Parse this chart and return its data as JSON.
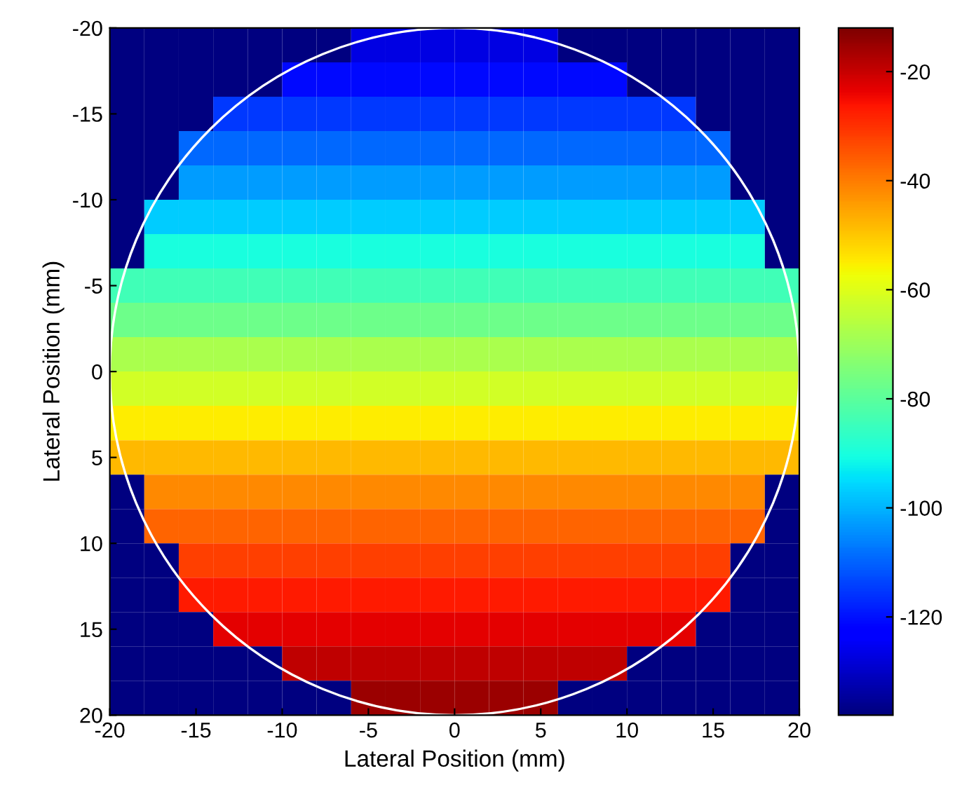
{
  "chart_data": {
    "type": "heatmap",
    "xlabel": "Lateral Position (mm)",
    "ylabel": "Lateral Position (mm)",
    "xlim": [
      -20,
      20
    ],
    "ylim": [
      20,
      -20
    ],
    "xticks": [
      -20,
      -15,
      -10,
      -5,
      0,
      5,
      10,
      15,
      20
    ],
    "yticks": [
      -20,
      -15,
      -10,
      -5,
      0,
      5,
      10,
      15,
      20
    ],
    "clim": [
      -138,
      -12
    ],
    "cticks": [
      -120,
      -100,
      -80,
      -60,
      -40,
      -20
    ],
    "cells": [
      [
        -138,
        -138,
        -138,
        -138,
        -138,
        -138,
        -138,
        -127,
        -127,
        -127,
        -127,
        -127,
        -127,
        -138,
        -138,
        -138,
        -138,
        -138,
        -138,
        -138
      ],
      [
        -138,
        -138,
        -138,
        -138,
        -138,
        -121,
        -121,
        -121,
        -121,
        -121,
        -121,
        -121,
        -121,
        -121,
        -121,
        -138,
        -138,
        -138,
        -138,
        -138
      ],
      [
        -138,
        -138,
        -138,
        -115,
        -115,
        -115,
        -115,
        -115,
        -115,
        -115,
        -115,
        -115,
        -115,
        -115,
        -115,
        -115,
        -115,
        -138,
        -138,
        -138
      ],
      [
        -138,
        -138,
        -109,
        -109,
        -109,
        -109,
        -109,
        -109,
        -109,
        -109,
        -109,
        -109,
        -109,
        -109,
        -109,
        -109,
        -109,
        -109,
        -138,
        -138
      ],
      [
        -138,
        -138,
        -103,
        -103,
        -103,
        -103,
        -103,
        -103,
        -103,
        -103,
        -103,
        -103,
        -103,
        -103,
        -103,
        -103,
        -103,
        -103,
        -138,
        -138
      ],
      [
        -138,
        -97,
        -97,
        -97,
        -97,
        -97,
        -97,
        -97,
        -97,
        -97,
        -97,
        -97,
        -97,
        -97,
        -97,
        -97,
        -97,
        -97,
        -97,
        -138
      ],
      [
        -138,
        -90,
        -90,
        -90,
        -90,
        -90,
        -90,
        -90,
        -90,
        -90,
        -90,
        -90,
        -90,
        -90,
        -90,
        -90,
        -90,
        -90,
        -90,
        -138
      ],
      [
        -84,
        -84,
        -84,
        -84,
        -84,
        -84,
        -84,
        -84,
        -84,
        -84,
        -84,
        -84,
        -84,
        -84,
        -84,
        -84,
        -84,
        -84,
        -84,
        -84
      ],
      [
        -77,
        -77,
        -77,
        -77,
        -77,
        -77,
        -77,
        -77,
        -77,
        -77,
        -77,
        -77,
        -77,
        -77,
        -77,
        -77,
        -77,
        -77,
        -77,
        -77
      ],
      [
        -68,
        -68,
        -68,
        -68,
        -68,
        -68,
        -68,
        -68,
        -68,
        -68,
        -68,
        -68,
        -68,
        -68,
        -68,
        -68,
        -68,
        -68,
        -68,
        -68
      ],
      [
        -62,
        -62,
        -62,
        -62,
        -62,
        -62,
        -62,
        -62,
        -62,
        -62,
        -62,
        -62,
        -62,
        -62,
        -62,
        -62,
        -62,
        -62,
        -62,
        -62
      ],
      [
        -55,
        -55,
        -55,
        -55,
        -55,
        -55,
        -55,
        -55,
        -55,
        -55,
        -55,
        -55,
        -55,
        -55,
        -55,
        -55,
        -55,
        -55,
        -55,
        -55
      ],
      [
        -48,
        -48,
        -48,
        -48,
        -48,
        -48,
        -48,
        -48,
        -48,
        -48,
        -48,
        -48,
        -48,
        -48,
        -48,
        -48,
        -48,
        -48,
        -48,
        -48
      ],
      [
        -138,
        -42,
        -42,
        -42,
        -42,
        -42,
        -42,
        -42,
        -42,
        -42,
        -42,
        -42,
        -42,
        -42,
        -42,
        -42,
        -42,
        -42,
        -42,
        -138
      ],
      [
        -138,
        -37,
        -37,
        -37,
        -37,
        -37,
        -37,
        -37,
        -37,
        -37,
        -37,
        -37,
        -37,
        -37,
        -37,
        -37,
        -37,
        -37,
        -37,
        -138
      ],
      [
        -138,
        -138,
        -32,
        -32,
        -32,
        -32,
        -32,
        -32,
        -32,
        -32,
        -32,
        -32,
        -32,
        -32,
        -32,
        -32,
        -32,
        -32,
        -138,
        -138
      ],
      [
        -138,
        -138,
        -27,
        -27,
        -27,
        -27,
        -27,
        -27,
        -27,
        -27,
        -27,
        -27,
        -27,
        -27,
        -27,
        -27,
        -27,
        -27,
        -138,
        -138
      ],
      [
        -138,
        -138,
        -138,
        -23,
        -23,
        -23,
        -23,
        -23,
        -23,
        -23,
        -23,
        -23,
        -23,
        -23,
        -23,
        -23,
        -23,
        -138,
        -138,
        -138
      ],
      [
        -138,
        -138,
        -138,
        -138,
        -138,
        -19,
        -19,
        -19,
        -19,
        -19,
        -19,
        -19,
        -19,
        -19,
        -19,
        -138,
        -138,
        -138,
        -138,
        -138
      ],
      [
        -138,
        -138,
        -138,
        -138,
        -138,
        -138,
        -138,
        -15,
        -15,
        -15,
        -15,
        -15,
        -15,
        -138,
        -138,
        -138,
        -138,
        -138,
        -138,
        -138
      ]
    ]
  }
}
